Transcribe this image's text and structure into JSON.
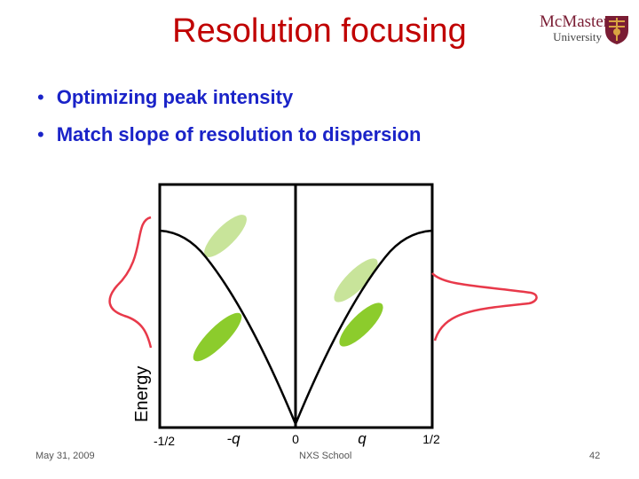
{
  "slide": {
    "title": "Resolution focusing",
    "bullets": [
      "Optimizing peak intensity",
      "Match slope of resolution to dispersion"
    ]
  },
  "logo": {
    "line1": "McMaster",
    "line2": "University"
  },
  "diagram": {
    "y_axis_label": "Energy",
    "x_ticks": [
      "-1/2",
      "-q",
      "0",
      "q",
      "1/2"
    ],
    "colors": {
      "dispersion": "#000000",
      "profile": "#e8394a",
      "ellipse_light": "#c8e49a",
      "ellipse_dark": "#8ccc2c",
      "frame": "#000000"
    }
  },
  "footer": {
    "date": "May 31, 2009",
    "event": "NXS School",
    "page": "42"
  }
}
